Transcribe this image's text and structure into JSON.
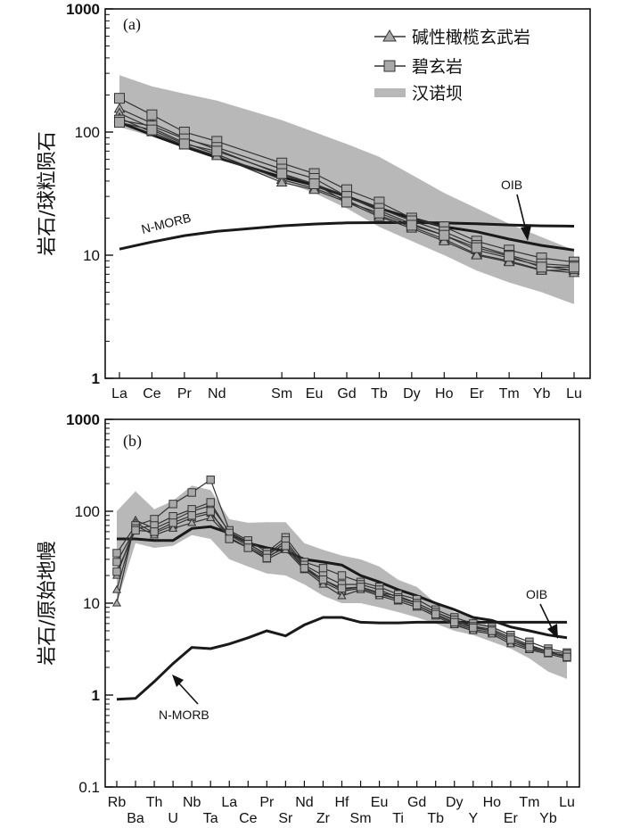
{
  "legend": {
    "alkali_basalt": "碱性橄榄玄武岩",
    "basanite": "碧玄岩",
    "hannuoba": "汉诺坝"
  },
  "colors": {
    "envelope": "#b8b8b8",
    "sample": "#333333",
    "marker": "#a9a9a9",
    "refline": "#1a1a1a"
  },
  "chart_data": [
    {
      "type": "line",
      "panel_label": "(a)",
      "ylabel": "岩石/球粒陨石",
      "yscale": "log",
      "ylim": [
        1,
        1000
      ],
      "yticks": [
        "1000",
        "100",
        "10",
        "1"
      ],
      "categories": [
        "La",
        "Ce",
        "Pr",
        "Nd",
        "Sm",
        "Eu",
        "Gd",
        "Tb",
        "Dy",
        "Ho",
        "Er",
        "Tm",
        "Yb",
        "Lu"
      ],
      "positions": [
        0,
        1,
        2,
        3,
        5,
        6,
        7,
        8,
        9,
        10,
        11,
        12,
        13,
        14
      ],
      "envelope_label": "汉诺坝",
      "envelope_upper": [
        290,
        235,
        205,
        180,
        125,
        100,
        80,
        63,
        45,
        32,
        24,
        18,
        14,
        11
      ],
      "envelope_lower": [
        110,
        92,
        75,
        62,
        40,
        32,
        24,
        17,
        13,
        10,
        7.5,
        6,
        5,
        4
      ],
      "series": [
        {
          "name": "碱性橄榄玄武岩",
          "marker": "triangle",
          "values": [
            155,
            118,
            90,
            72,
            45,
            38,
            30,
            23,
            18,
            14.5,
            11,
            9.5,
            8.2,
            7.5
          ]
        },
        {
          "name": "碱性橄榄玄武岩",
          "marker": "triangle",
          "values": [
            142,
            108,
            82,
            66,
            41,
            35,
            28,
            21,
            17,
            13.5,
            10.2,
            9,
            7.6,
            7.2
          ]
        },
        {
          "name": "碱性橄榄玄武岩",
          "marker": "triangle",
          "values": [
            130,
            100,
            78,
            64,
            39,
            34,
            27,
            20.5,
            16.5,
            13,
            10,
            8.8,
            7.5,
            7.6
          ]
        },
        {
          "name": "碧玄岩",
          "marker": "square",
          "values": [
            188,
            138,
            100,
            84,
            56,
            46,
            34,
            27,
            20,
            17,
            13,
            11,
            9.5,
            8.8
          ]
        },
        {
          "name": "碧玄岩",
          "marker": "square",
          "values": [
            125,
            112,
            88,
            75,
            50,
            42,
            30,
            24,
            19,
            15.5,
            12,
            10,
            8.5,
            8.2
          ]
        },
        {
          "name": "碧玄岩",
          "marker": "square",
          "values": [
            120,
            104,
            80,
            70,
            46,
            38,
            27,
            22,
            17.5,
            14.5,
            11.5,
            9.8,
            8,
            8
          ]
        }
      ],
      "reference_lines": [
        {
          "name": "N-MORB",
          "values": [
            11.2,
            12.8,
            14.4,
            15.6,
            17.3,
            17.9,
            18.3,
            18.4,
            18.4,
            18.3,
            18.0,
            17.6,
            17.3,
            17.2
          ]
        },
        {
          "name": "OIB",
          "values": [
            120,
            95,
            76,
            62,
            43,
            37,
            30,
            24,
            20,
            17,
            15.5,
            13.5,
            12,
            11
          ]
        }
      ],
      "annotations": [
        "N-MORB",
        "OIB"
      ]
    },
    {
      "type": "line",
      "panel_label": "(b)",
      "ylabel": "岩石/原始地幔",
      "yscale": "log",
      "ylim": [
        0.1,
        1000
      ],
      "yticks": [
        "1000",
        "100",
        "10",
        "1",
        "0.1"
      ],
      "categories": [
        "Rb",
        "Ba",
        "Th",
        "U",
        "Nb",
        "Ta",
        "La",
        "Ce",
        "Pr",
        "Sr",
        "Nd",
        "Zr",
        "Hf",
        "Sm",
        "Eu",
        "Ti",
        "Gd",
        "Tb",
        "Dy",
        "Y",
        "Ho",
        "Er",
        "Tm",
        "Yb",
        "Lu"
      ],
      "envelope_label": "汉诺坝",
      "envelope_upper": [
        100,
        165,
        105,
        130,
        190,
        170,
        82,
        75,
        76,
        76,
        45,
        38,
        33,
        30,
        25,
        18,
        15,
        10,
        8,
        7,
        5.5,
        4.5,
        3.6,
        3,
        2.6
      ],
      "envelope_lower": [
        10,
        45,
        40,
        42,
        55,
        50,
        30,
        25,
        21,
        20,
        16,
        12,
        10,
        10,
        9,
        8,
        7,
        6,
        5,
        4.5,
        3.8,
        3.2,
        2.5,
        1.8,
        1.5
      ],
      "series": [
        {
          "name": "碱性橄榄玄武岩",
          "marker": "triangle",
          "values": [
            10,
            80,
            65,
            80,
            100,
            115,
            60,
            45,
            33,
            45,
            25,
            18,
            14,
            15,
            13,
            12,
            10,
            8,
            6.5,
            5.5,
            5,
            4,
            3.4,
            3,
            2.6
          ]
        },
        {
          "name": "碱性橄榄玄武岩",
          "marker": "triangle",
          "values": [
            14,
            75,
            58,
            70,
            85,
            95,
            55,
            42,
            32,
            40,
            24,
            17,
            13.5,
            14.5,
            12.5,
            11,
            9.5,
            7.5,
            6,
            5.2,
            4.8,
            3.8,
            3.2,
            2.9,
            2.7
          ]
        },
        {
          "name": "碱性橄榄玄武岩",
          "marker": "triangle",
          "values": [
            20,
            70,
            55,
            65,
            75,
            85,
            52,
            40,
            30,
            38,
            23,
            16,
            12,
            14,
            12,
            10.5,
            9,
            7.2,
            5.8,
            5,
            4.6,
            3.6,
            3.1,
            2.8,
            2.5
          ]
        },
        {
          "name": "碧玄岩",
          "marker": "square",
          "values": [
            35,
            70,
            82,
            120,
            160,
            220,
            62,
            48,
            36,
            52,
            28,
            24,
            20,
            17,
            15,
            12.5,
            11,
            8.5,
            7,
            6,
            5.5,
            4.5,
            3.8,
            3.2,
            2.9
          ]
        },
        {
          "name": "碧玄岩",
          "marker": "square",
          "values": [
            28,
            65,
            70,
            88,
            105,
            125,
            58,
            44,
            34,
            48,
            26,
            20,
            16,
            16,
            14,
            11.5,
            10,
            8,
            6.6,
            5.6,
            5.2,
            4.2,
            3.5,
            3,
            2.8
          ]
        },
        {
          "name": "碧玄岩",
          "marker": "square",
          "values": [
            22,
            62,
            60,
            75,
            90,
            100,
            50,
            40,
            31,
            42,
            24,
            18,
            14.5,
            15,
            13,
            11,
            9.5,
            7.6,
            6.2,
            5.4,
            5,
            4,
            3.3,
            2.9,
            2.6
          ]
        }
      ],
      "reference_lines": [
        {
          "name": "N-MORB",
          "values": [
            0.9,
            0.92,
            1.4,
            2.2,
            3.3,
            3.2,
            3.6,
            4.2,
            5,
            4.4,
            5.8,
            7,
            7,
            6.2,
            6.1,
            6.1,
            6.2,
            6.2,
            6.2,
            6.2,
            6.2,
            6.2,
            6.2,
            6.2,
            6.2
          ]
        },
        {
          "name": "OIB",
          "values": [
            50,
            50,
            48,
            48,
            65,
            68,
            58,
            45,
            40,
            37,
            30,
            28,
            26,
            20,
            17,
            14,
            12,
            10,
            8.5,
            7,
            6.5,
            5.5,
            5,
            4.5,
            4.2
          ]
        }
      ],
      "annotations": [
        "N-MORB",
        "OIB"
      ]
    }
  ]
}
